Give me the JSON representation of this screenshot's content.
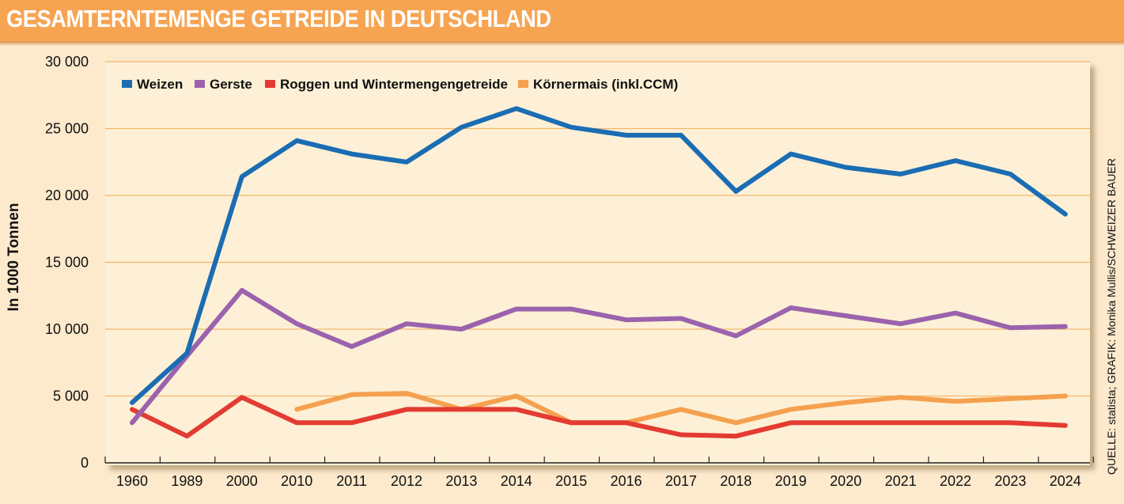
{
  "header": {
    "title": "GESAMTERNTEMENGE GETREIDE IN DEUTSCHLAND"
  },
  "source": "QUELLE: statista; GRAFIK: Monika Mullis/SCHWEIZER BAUER",
  "chart_data": {
    "type": "line",
    "title": "GESAMTERNTEMENGE GETREIDE IN DEUTSCHLAND",
    "xlabel": "",
    "ylabel": "In 1000 Tonnen",
    "ylim": [
      0,
      30000
    ],
    "yticks": [
      0,
      5000,
      10000,
      15000,
      20000,
      25000,
      30000
    ],
    "ytick_labels": [
      "0",
      "5 000",
      "10 000",
      "15 000",
      "20 000",
      "25 000",
      "30 000"
    ],
    "grid": "horizontal",
    "legend_position": "top-left",
    "categories": [
      "1960",
      "1989",
      "2000",
      "2010",
      "2011",
      "2012",
      "2013",
      "2014",
      "2015",
      "2016",
      "2017",
      "2018",
      "2019",
      "2020",
      "2021",
      "2022",
      "2023",
      "2024"
    ],
    "series": [
      {
        "name": "Weizen",
        "color": "#1b6db3",
        "values": [
          4500,
          8200,
          21400,
          24100,
          23100,
          22500,
          25100,
          26500,
          25100,
          24500,
          24500,
          20300,
          23100,
          22100,
          21600,
          22600,
          21600,
          18600
        ]
      },
      {
        "name": "Gerste",
        "color": "#9b62ad",
        "values": [
          3000,
          8000,
          12900,
          10400,
          8700,
          10400,
          10000,
          11500,
          11500,
          10700,
          10800,
          9500,
          11600,
          11000,
          10400,
          11200,
          10100,
          10200
        ]
      },
      {
        "name": "Roggen und Wintermengengetreide",
        "color": "#e33b32",
        "values": [
          4000,
          2000,
          4900,
          3000,
          3000,
          4000,
          4000,
          4000,
          3000,
          3000,
          2100,
          2000,
          3000,
          3000,
          3000,
          3000,
          3000,
          2800
        ]
      },
      {
        "name": "Körnermais (inkl.CCM)",
        "color": "#f5a04e",
        "values": [
          null,
          null,
          null,
          4000,
          5100,
          5200,
          4000,
          5000,
          3000,
          3000,
          4000,
          3000,
          4000,
          4500,
          4900,
          4600,
          4800,
          5000
        ]
      }
    ]
  }
}
